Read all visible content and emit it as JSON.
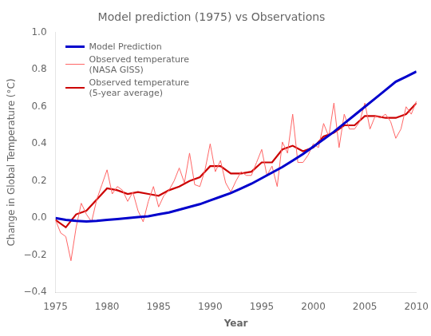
{
  "chart_data": {
    "type": "line",
    "title": "Model prediction (1975) vs Observations",
    "xlabel": "Year",
    "ylabel": "Change in Global Temperature (°C)",
    "xlim": [
      1975,
      2010
    ],
    "ylim": [
      -0.4,
      1.0
    ],
    "xticks": [
      1975,
      1980,
      1985,
      1990,
      1995,
      2000,
      2005,
      2010
    ],
    "yticks": [
      {
        "value": -0.4,
        "label": "−0.4"
      },
      {
        "value": -0.2,
        "label": "−0.2"
      },
      {
        "value": 0.0,
        "label": "0.0"
      },
      0.2,
      0.4,
      0.6,
      0.8,
      {
        "value": 1.0,
        "label": "1.0"
      }
    ],
    "grid": false,
    "legend": "upper left",
    "series": [
      {
        "name": "Model Prediction",
        "color": "#0000cc",
        "x": [
          1975,
          1976,
          1977,
          1978,
          1979,
          1980,
          1981,
          1982,
          1983,
          1984,
          1985,
          1986,
          1987,
          1988,
          1989,
          1990,
          1991,
          1992,
          1993,
          1994,
          1995,
          1996,
          1997,
          1998,
          1999,
          2000,
          2001,
          2002,
          2003,
          2004,
          2005,
          2006,
          2007,
          2008,
          2009,
          2010
        ],
        "values": [
          0.0,
          -0.01,
          -0.015,
          -0.018,
          -0.015,
          -0.01,
          -0.005,
          0.0,
          0.005,
          0.01,
          0.02,
          0.03,
          0.045,
          0.06,
          0.075,
          0.095,
          0.115,
          0.135,
          0.16,
          0.185,
          0.215,
          0.245,
          0.275,
          0.31,
          0.345,
          0.385,
          0.425,
          0.465,
          0.51,
          0.555,
          0.6,
          0.645,
          0.69,
          0.735,
          0.762,
          0.79
        ]
      },
      {
        "name": "Observed temperature\n(NASA GISS)",
        "color": "#ff6666",
        "x": [
          1975,
          1975.5,
          1976,
          1976.5,
          1977,
          1977.5,
          1978,
          1978.5,
          1979,
          1979.5,
          1980,
          1980.5,
          1981,
          1981.5,
          1982,
          1982.5,
          1983,
          1983.5,
          1984,
          1984.5,
          1985,
          1985.5,
          1986,
          1986.5,
          1987,
          1987.5,
          1988,
          1988.5,
          1989,
          1989.5,
          1990,
          1990.5,
          1991,
          1991.5,
          1992,
          1992.5,
          1993,
          1993.5,
          1994,
          1994.5,
          1995,
          1995.5,
          1996,
          1996.5,
          1997,
          1997.5,
          1998,
          1998.5,
          1999,
          1999.5,
          2000,
          2000.5,
          2001,
          2001.5,
          2002,
          2002.5,
          2003,
          2003.5,
          2004,
          2004.5,
          2005,
          2005.5,
          2006,
          2006.5,
          2007,
          2007.5,
          2008,
          2008.5,
          2009,
          2009.5,
          2010
        ],
        "values": [
          -0.01,
          -0.08,
          -0.1,
          -0.23,
          -0.05,
          0.08,
          0.02,
          -0.02,
          0.1,
          0.18,
          0.26,
          0.13,
          0.17,
          0.15,
          0.09,
          0.14,
          0.04,
          -0.02,
          0.09,
          0.17,
          0.06,
          0.12,
          0.15,
          0.2,
          0.27,
          0.19,
          0.35,
          0.18,
          0.17,
          0.26,
          0.4,
          0.25,
          0.31,
          0.19,
          0.14,
          0.2,
          0.25,
          0.23,
          0.23,
          0.3,
          0.37,
          0.23,
          0.28,
          0.17,
          0.41,
          0.35,
          0.56,
          0.3,
          0.3,
          0.34,
          0.4,
          0.38,
          0.51,
          0.44,
          0.62,
          0.38,
          0.56,
          0.48,
          0.48,
          0.52,
          0.62,
          0.48,
          0.55,
          0.54,
          0.56,
          0.52,
          0.43,
          0.48,
          0.6,
          0.56,
          0.63
        ]
      },
      {
        "name": "Observed temperature\n(5-year average)",
        "color": "#cc0000",
        "x": [
          1975,
          1976,
          1977,
          1978,
          1979,
          1980,
          1981,
          1982,
          1983,
          1984,
          1985,
          1986,
          1987,
          1988,
          1989,
          1990,
          1991,
          1992,
          1993,
          1994,
          1995,
          1996,
          1997,
          1998,
          1999,
          2000,
          2001,
          2002,
          2003,
          2004,
          2005,
          2006,
          2007,
          2008,
          2009,
          2010
        ],
        "values": [
          -0.01,
          -0.05,
          0.02,
          0.04,
          0.1,
          0.16,
          0.15,
          0.13,
          0.14,
          0.13,
          0.12,
          0.15,
          0.17,
          0.2,
          0.22,
          0.28,
          0.28,
          0.24,
          0.24,
          0.25,
          0.3,
          0.3,
          0.37,
          0.39,
          0.36,
          0.38,
          0.44,
          0.46,
          0.5,
          0.5,
          0.55,
          0.55,
          0.54,
          0.54,
          0.56,
          0.62
        ]
      }
    ]
  }
}
